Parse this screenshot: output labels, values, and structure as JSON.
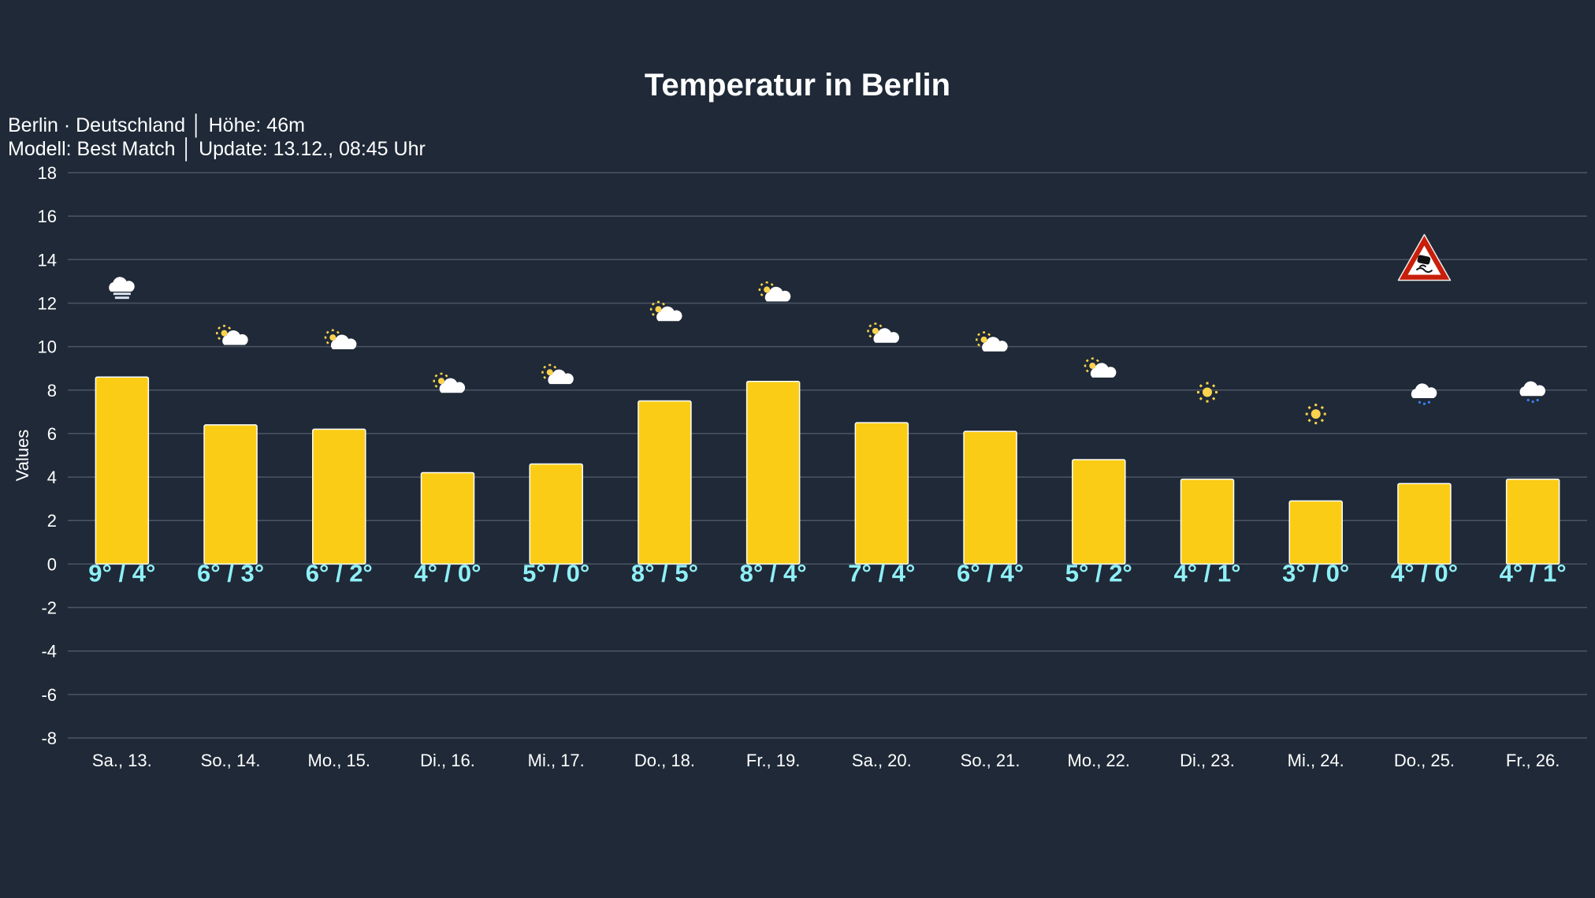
{
  "header": {
    "title": "Temperatur in Berlin",
    "subtitle_line1": "Berlin · Deutschland │ Höhe: 46m",
    "subtitle_line2": "Modell: Best Match │ Update: 13.12., 08:45 Uhr"
  },
  "chart_data": {
    "type": "bar",
    "title": "Temperatur in Berlin",
    "xlabel": "",
    "ylabel": "Values",
    "ylim": [
      -8,
      18
    ],
    "yticks": [
      18,
      16,
      14,
      12,
      10,
      8,
      6,
      4,
      2,
      0,
      -2,
      -4,
      -6,
      -8
    ],
    "grid": true,
    "categories": [
      "Sa., 13.",
      "So., 14.",
      "Mo., 15.",
      "Di., 16.",
      "Mi., 17.",
      "Do., 18.",
      "Fr., 19.",
      "Sa., 20.",
      "So., 21.",
      "Mo., 22.",
      "Di., 23.",
      "Mi., 24.",
      "Do., 25.",
      "Fr., 26."
    ],
    "values": [
      8.6,
      6.4,
      6.2,
      4.2,
      4.6,
      7.5,
      8.4,
      6.5,
      6.1,
      4.8,
      3.9,
      2.9,
      3.7,
      3.9
    ],
    "value_labels": [
      "9° / 4°",
      "6° / 3°",
      "6° / 2°",
      "4° / 0°",
      "5° / 0°",
      "8° / 5°",
      "8° / 4°",
      "7° / 4°",
      "6° / 4°",
      "5° / 2°",
      "4° / 1°",
      "3° / 0°",
      "4° / 0°",
      "4° / 1°"
    ],
    "weather_icons": [
      "fog",
      "partly-cloudy",
      "partly-cloudy",
      "partly-cloudy",
      "partly-cloudy",
      "partly-cloudy",
      "partly-cloudy",
      "partly-cloudy",
      "partly-cloudy",
      "partly-cloudy",
      "sun",
      "sun",
      "drizzle",
      "drizzle"
    ],
    "icon_values": [
      12.7,
      10.4,
      10.2,
      8.2,
      8.6,
      11.5,
      12.4,
      10.5,
      10.1,
      8.9,
      7.9,
      6.9,
      7.8,
      7.9
    ],
    "warnings": [
      {
        "category": "Do., 25.",
        "icon": "slippery-road-warning",
        "value": 14.1
      }
    ],
    "colors": {
      "bar": "#facc15",
      "bar_border": "#ffffff",
      "value_label": "#8ff0f7",
      "grid": "#4b5563",
      "background": "#1f2937"
    }
  }
}
